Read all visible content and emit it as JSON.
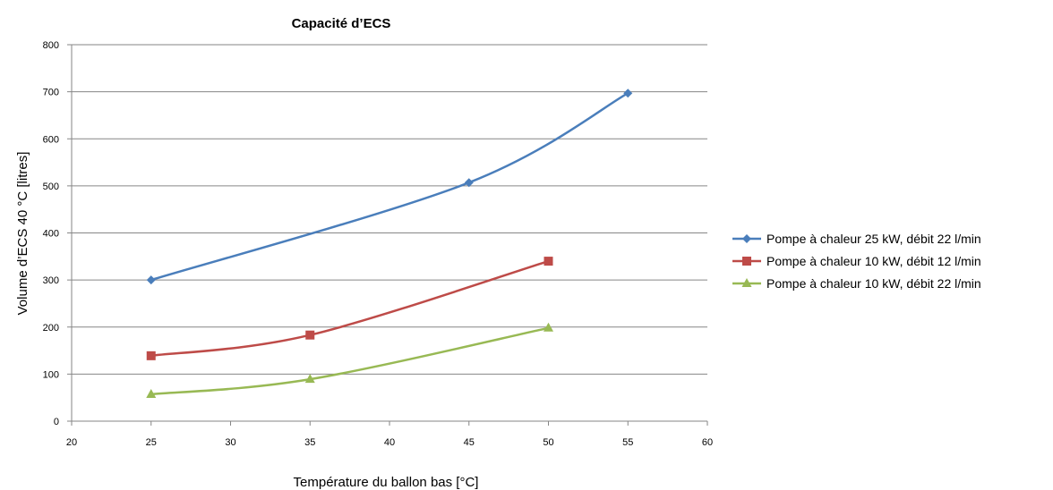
{
  "chart_data": {
    "type": "line",
    "title": "Capacité d’ECS",
    "xlabel": "Température du ballon bas [°C]",
    "ylabel": "Volume d’ECS 40 °C [litres]",
    "xlim": [
      20,
      60
    ],
    "ylim": [
      0,
      800
    ],
    "xticks": [
      20,
      25,
      30,
      35,
      40,
      45,
      50,
      55,
      60
    ],
    "yticks": [
      0,
      100,
      200,
      300,
      400,
      500,
      600,
      700,
      800
    ],
    "grid": "horizontal",
    "legend_position": "right",
    "series": [
      {
        "name": "Pompe à chaleur 25 kW, débit 22 l/min",
        "color": "#4a7ebb",
        "marker": "diamond",
        "x": [
          25,
          45,
          55
        ],
        "y": [
          300,
          507,
          697
        ]
      },
      {
        "name": "Pompe à chaleur 10 kW, débit 12 l/min",
        "color": "#be4b48",
        "marker": "square",
        "x": [
          25,
          35,
          50
        ],
        "y": [
          139,
          183,
          340
        ]
      },
      {
        "name": "Pompe à chaleur 10 kW, débit 22 l/min",
        "color": "#98b954",
        "marker": "triangle",
        "x": [
          25,
          35,
          50
        ],
        "y": [
          57,
          89,
          198
        ]
      }
    ]
  }
}
